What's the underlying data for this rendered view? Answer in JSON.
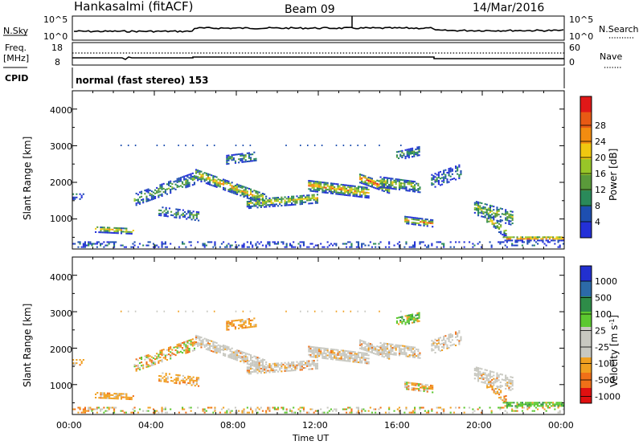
{
  "header": {
    "station": "Hankasalmi (fitACF)",
    "beam": "Beam 09",
    "date": "14/Mar/2016"
  },
  "noise_panel": {
    "left_label": "N.Sky",
    "left_ticks": [
      "10^5",
      "10^0"
    ],
    "right_label": "N.Search",
    "right_ticks": [
      "10^5",
      "10^0"
    ]
  },
  "freq_panel": {
    "left_label_line1": "Freq.",
    "left_label_line2": "[MHz]",
    "left_ticks": [
      "18",
      "8"
    ],
    "right_label": "Nave",
    "right_ticks": [
      "60",
      "0"
    ]
  },
  "cpid": {
    "label": "CPID",
    "value": "normal (fast stereo) 153"
  },
  "chart_data": [
    {
      "type": "heatmap",
      "name": "power",
      "ylabel": "Slant Range [km]",
      "xlabel": "Time UT",
      "y_ticks": [
        "1000",
        "2000",
        "3000",
        "4000"
      ],
      "colorbar_label": "Power [dB]",
      "colorbar_ticks": [
        "4",
        "8",
        "12",
        "16",
        "20",
        "24",
        "28"
      ],
      "colorbar_colors": [
        "#2330d8",
        "#1e4fb0",
        "#2a8a5a",
        "#5a9a3a",
        "#98c628",
        "#f0c810",
        "#f28c10",
        "#e85a14",
        "#e01818"
      ],
      "color_range": [
        0,
        32
      ]
    },
    {
      "type": "heatmap",
      "name": "velocity",
      "ylabel": "Slant Range [km]",
      "xlabel": "Time UT",
      "y_ticks": [
        "1000",
        "2000",
        "3000",
        "4000"
      ],
      "colorbar_label": "Velocity [m s-1]",
      "colorbar_ticks": [
        "1000",
        "500",
        "100",
        "25",
        "-25",
        "-100",
        "-500",
        "-1000"
      ],
      "colorbar_colors": [
        "#2230d0",
        "#2c6aa8",
        "#2e8c48",
        "#5cc830",
        "#c8c8c0",
        "#c8c8c0",
        "#f0a020",
        "#f07018",
        "#e01010"
      ]
    }
  ],
  "x_axis": {
    "ticks": [
      "00:00",
      "04:00",
      "08:00",
      "12:00",
      "16:00",
      "20:00",
      "00:00"
    ],
    "label": "Time UT"
  },
  "colors": {
    "ground_scatter": "#c8c8c0"
  }
}
